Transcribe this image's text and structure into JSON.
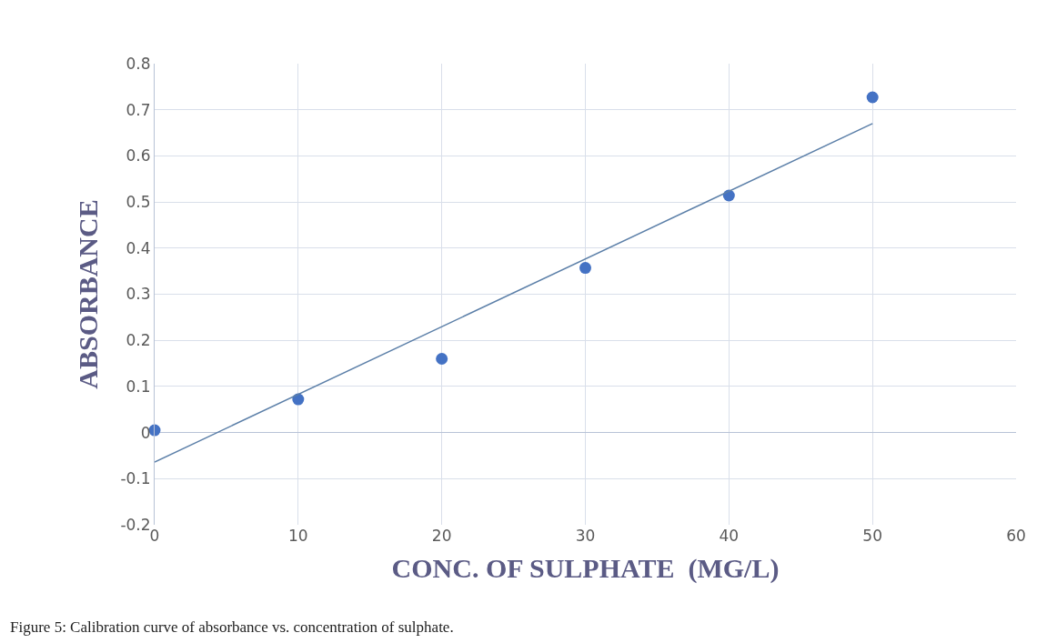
{
  "chart_data": {
    "type": "scatter",
    "xlabel": "CONC. OF SULPHATE  (MG/L)",
    "ylabel": "ABSORBANCE",
    "x": [
      0,
      10,
      20,
      30,
      40,
      50
    ],
    "series": [
      {
        "color": "#4472c4",
        "values": [
          0.005,
          0.072,
          0.16,
          0.357,
          0.514,
          0.727
        ],
        "marker": "circle"
      },
      {
        "type": "line",
        "color": "#5b7fa8",
        "x": [
          0,
          50
        ],
        "values": [
          -0.064,
          0.67
        ],
        "marker": "none",
        "line_style": "solid"
      }
    ],
    "xlim": [
      0,
      60
    ],
    "xticks": [
      0,
      10,
      20,
      30,
      40,
      50,
      60
    ],
    "ylim": [
      -0.2,
      0.8
    ],
    "yticks": [
      -0.2,
      -0.1,
      0,
      0.1,
      0.2,
      0.3,
      0.4,
      0.5,
      0.6,
      0.7,
      0.8
    ],
    "grid": true,
    "legend": false,
    "annotations": [
      "Figure 5: Calibration curve of absorbance vs. concentration of sulphate."
    ]
  }
}
